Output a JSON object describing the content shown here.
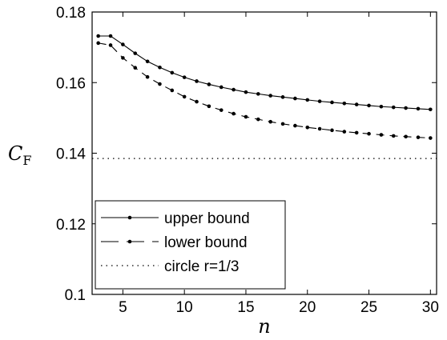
{
  "chart_data": {
    "type": "line",
    "xlabel": "n",
    "ylabel": {
      "main": "C",
      "sub": "F"
    },
    "xlim": [
      2.5,
      30.5
    ],
    "ylim": [
      0.1,
      0.18
    ],
    "x_ticks": [
      5,
      10,
      15,
      20,
      25,
      30
    ],
    "y_ticks": [
      0.1,
      0.12,
      0.14,
      0.16,
      0.18
    ],
    "x_tick_labels": [
      "5",
      "10",
      "15",
      "20",
      "25",
      "30"
    ],
    "y_tick_labels": [
      "0.1",
      "0.12",
      "0.14",
      "0.16",
      "0.18"
    ],
    "grid": false,
    "legend_position": "bottom-left",
    "series": [
      {
        "name": "upper bound",
        "style": "solid",
        "marker": "dot",
        "color": "#000000",
        "x": [
          3,
          4,
          5,
          6,
          7,
          8,
          9,
          10,
          11,
          12,
          13,
          14,
          15,
          16,
          17,
          18,
          19,
          20,
          21,
          22,
          23,
          24,
          25,
          26,
          27,
          28,
          29,
          30
        ],
        "values": [
          0.1732,
          0.1732,
          0.1708,
          0.1683,
          0.166,
          0.1643,
          0.1628,
          0.1615,
          0.1604,
          0.1595,
          0.1587,
          0.158,
          0.1573,
          0.1568,
          0.1563,
          0.1559,
          0.1555,
          0.1551,
          0.1547,
          0.1544,
          0.1541,
          0.1538,
          0.1535,
          0.1532,
          0.153,
          0.1528,
          0.1526,
          0.1524
        ]
      },
      {
        "name": "lower bound",
        "style": "dashed",
        "marker": "dot",
        "color": "#000000",
        "x": [
          3,
          4,
          5,
          6,
          7,
          8,
          9,
          10,
          11,
          12,
          13,
          14,
          15,
          16,
          17,
          18,
          19,
          20,
          21,
          22,
          23,
          24,
          25,
          26,
          27,
          28,
          29,
          30
        ],
        "values": [
          0.1712,
          0.1706,
          0.167,
          0.1642,
          0.1616,
          0.1596,
          0.1578,
          0.156,
          0.1546,
          0.1533,
          0.1522,
          0.1512,
          0.1503,
          0.1496,
          0.1489,
          0.1483,
          0.1478,
          0.1473,
          0.1469,
          0.1465,
          0.1461,
          0.1458,
          0.1455,
          0.1452,
          0.1449,
          0.1447,
          0.1445,
          0.1443
        ]
      },
      {
        "name": "circle r=1/3",
        "style": "dotted",
        "marker": "none",
        "color": "#000000",
        "x": [
          2.5,
          30.5
        ],
        "values": [
          0.1385,
          0.1385
        ]
      }
    ]
  }
}
